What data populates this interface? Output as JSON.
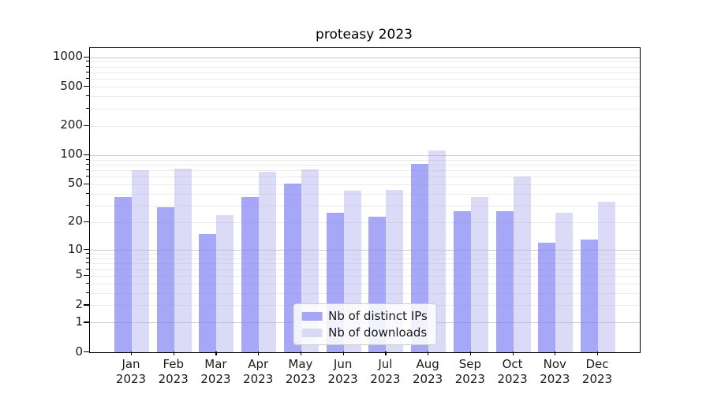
{
  "chart_data": {
    "type": "bar",
    "title": "proteasy 2023",
    "categories": [
      "Jan 2023",
      "Feb 2023",
      "Mar 2023",
      "Apr 2023",
      "May 2023",
      "Jun 2023",
      "Jul 2023",
      "Aug 2023",
      "Sep 2023",
      "Oct 2023",
      "Nov 2023",
      "Dec 2023"
    ],
    "series": [
      {
        "name": "Nb of distinct IPs",
        "color": "rgba(130,130,245,0.70)",
        "values": [
          37,
          29,
          15,
          37,
          51,
          25,
          23,
          82,
          26,
          26,
          12,
          13
        ]
      },
      {
        "name": "Nb of downloads",
        "color": "rgba(175,175,240,0.45)",
        "values": [
          70,
          73,
          24,
          67,
          71,
          43,
          44,
          111,
          37,
          60,
          25,
          33
        ]
      }
    ],
    "xlabel": "",
    "ylabel": "",
    "yscale": "log1p",
    "yticks": [
      0,
      1,
      2,
      5,
      10,
      20,
      50,
      100,
      200,
      500,
      1000
    ],
    "minor_gridline_values": [
      2,
      3,
      4,
      5,
      6,
      7,
      8,
      9,
      20,
      30,
      40,
      50,
      60,
      70,
      80,
      90,
      200,
      300,
      400,
      500,
      600,
      700,
      800,
      900
    ],
    "major_gridline_values": [
      1,
      10,
      100,
      1000
    ],
    "ylim": [
      0,
      1250
    ],
    "grid": "on",
    "legend_position": "lower center",
    "colors": {
      "axis": "#000000",
      "grid_major": "#c9c9c9",
      "grid_minor": "#ebebeb",
      "text": "#1a1a1a"
    }
  }
}
